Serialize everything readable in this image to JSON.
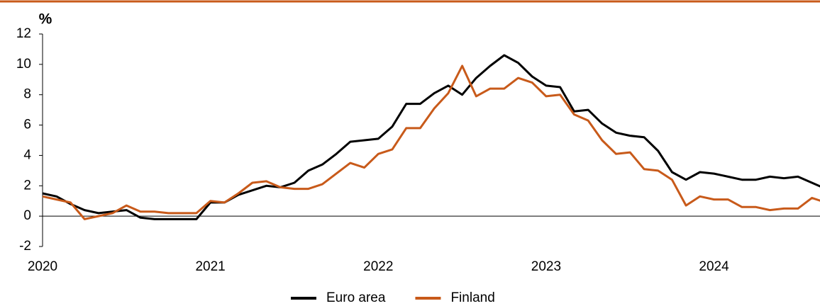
{
  "chart_data": {
    "type": "line",
    "y_label": "%",
    "categories": [
      "2020",
      null,
      null,
      null,
      null,
      null,
      null,
      null,
      null,
      null,
      null,
      null,
      "2021",
      null,
      null,
      null,
      null,
      null,
      null,
      null,
      null,
      null,
      null,
      null,
      "2022",
      null,
      null,
      null,
      null,
      null,
      null,
      null,
      null,
      null,
      null,
      null,
      "2023",
      null,
      null,
      null,
      null,
      null,
      null,
      null,
      null,
      null,
      null,
      null,
      "2024",
      null,
      null,
      null,
      null,
      null,
      null,
      null,
      null
    ],
    "series": [
      {
        "name": "Euro area",
        "color": "#000000",
        "values": [
          1.5,
          1.3,
          0.8,
          0.4,
          0.2,
          0.3,
          0.4,
          -0.1,
          -0.2,
          -0.2,
          -0.2,
          -0.2,
          0.9,
          0.9,
          1.4,
          1.7,
          2.0,
          1.9,
          2.2,
          3.0,
          3.4,
          4.1,
          4.9,
          5.0,
          5.1,
          5.9,
          7.4,
          7.4,
          8.1,
          8.6,
          8.0,
          9.1,
          9.9,
          10.6,
          10.1,
          9.2,
          8.6,
          8.5,
          6.9,
          7.0,
          6.1,
          5.5,
          5.3,
          5.2,
          4.3,
          2.9,
          2.4,
          2.9,
          2.8,
          2.6,
          2.4,
          2.4,
          2.6,
          2.5,
          2.6,
          2.2,
          1.8
        ]
      },
      {
        "name": "Finland",
        "color": "#c85a1a",
        "values": [
          1.3,
          1.1,
          0.9,
          -0.2,
          0.0,
          0.2,
          0.7,
          0.3,
          0.3,
          0.2,
          0.2,
          0.2,
          1.0,
          0.9,
          1.5,
          2.2,
          2.3,
          1.9,
          1.8,
          1.8,
          2.1,
          2.8,
          3.5,
          3.2,
          4.1,
          4.4,
          5.8,
          5.8,
          7.1,
          8.1,
          9.9,
          7.9,
          8.4,
          8.4,
          9.1,
          8.8,
          7.9,
          8.0,
          6.7,
          6.3,
          5.0,
          4.1,
          4.2,
          3.1,
          3.0,
          2.4,
          0.7,
          1.3,
          1.1,
          1.1,
          0.6,
          0.6,
          0.4,
          0.5,
          0.5,
          1.2,
          0.9
        ]
      }
    ],
    "ylim": [
      -2,
      12
    ],
    "yticks": [
      -2,
      0,
      2,
      4,
      6,
      8,
      10,
      12
    ],
    "legend": "bottom"
  }
}
